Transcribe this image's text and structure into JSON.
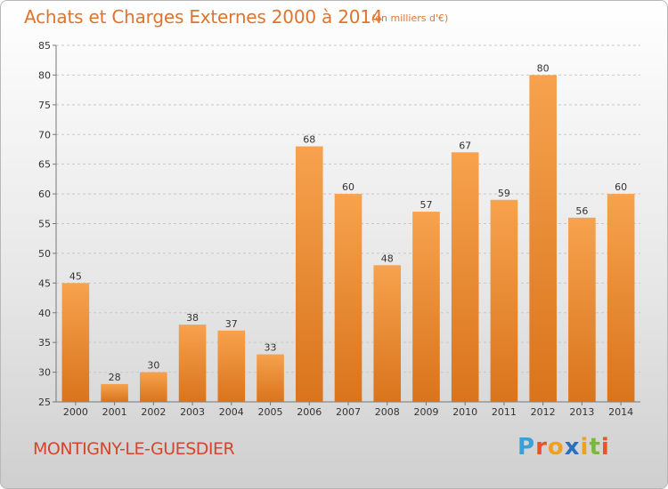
{
  "header": {
    "title": "Achats et Charges Externes 2000 à 2014",
    "subtitle": "(en milliers d'€)"
  },
  "footer": {
    "place": "MONTIGNY-LE-GUESDIER",
    "logo": "Proxiti"
  },
  "colors": {
    "title": "#e0742c",
    "place": "#d4462a",
    "bar_light": "#f7a24e",
    "bar_dark": "#d9741c",
    "logo_letters": [
      "#3aa0d8",
      "#e8542a",
      "#f0a020",
      "#2a6fc0",
      "#f0a020",
      "#7cb83a",
      "#e8542a"
    ]
  },
  "chart_data": {
    "type": "bar",
    "categories": [
      "2000",
      "2001",
      "2002",
      "2003",
      "2004",
      "2005",
      "2006",
      "2007",
      "2008",
      "2009",
      "2010",
      "2011",
      "2012",
      "2013",
      "2014"
    ],
    "values": [
      45,
      28,
      30,
      38,
      37,
      33,
      68,
      60,
      48,
      57,
      67,
      59,
      80,
      56,
      60
    ],
    "ylim": [
      25,
      85
    ],
    "yticks": [
      25,
      30,
      35,
      40,
      45,
      50,
      55,
      60,
      65,
      70,
      75,
      80,
      85
    ],
    "grid": true,
    "data_labels": true
  }
}
